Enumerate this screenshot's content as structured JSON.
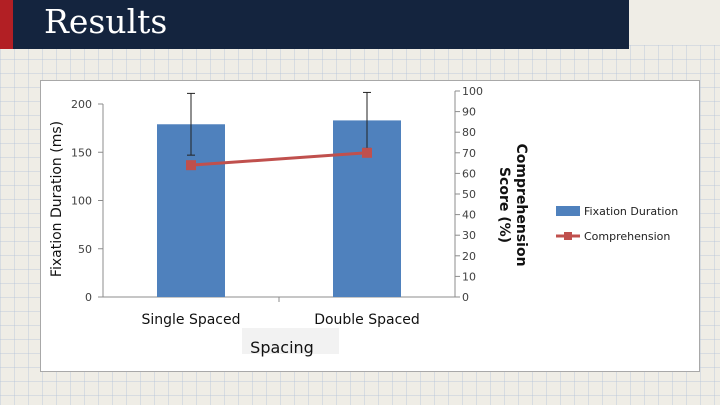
{
  "slide": {
    "title": "Results"
  },
  "chart_data": {
    "type": "bar",
    "categories": [
      "Single Spaced",
      "Double Spaced"
    ],
    "xlabel": "Spacing",
    "ylabel": "Fixation Duration (ms)",
    "y2label_lines": [
      "Comprehension",
      "Score (%)"
    ],
    "ylim": [
      0,
      200
    ],
    "y_ticks": [
      0,
      50,
      100,
      150,
      200
    ],
    "y2lim": [
      0,
      100
    ],
    "y2_ticks": [
      0,
      10,
      20,
      30,
      40,
      50,
      60,
      70,
      80,
      90,
      100
    ],
    "series": [
      {
        "name": "Fixation Duration",
        "type": "bar",
        "axis": "left",
        "color": "#4f81bd",
        "values": [
          179,
          183
        ],
        "error_upper": [
          32,
          29
        ],
        "error_lower": [
          32,
          29
        ]
      },
      {
        "name": "Comprehension",
        "type": "line",
        "axis": "right",
        "color": "#c0504d",
        "values": [
          64,
          70
        ]
      }
    ],
    "legend_position": "right",
    "grid": false
  }
}
